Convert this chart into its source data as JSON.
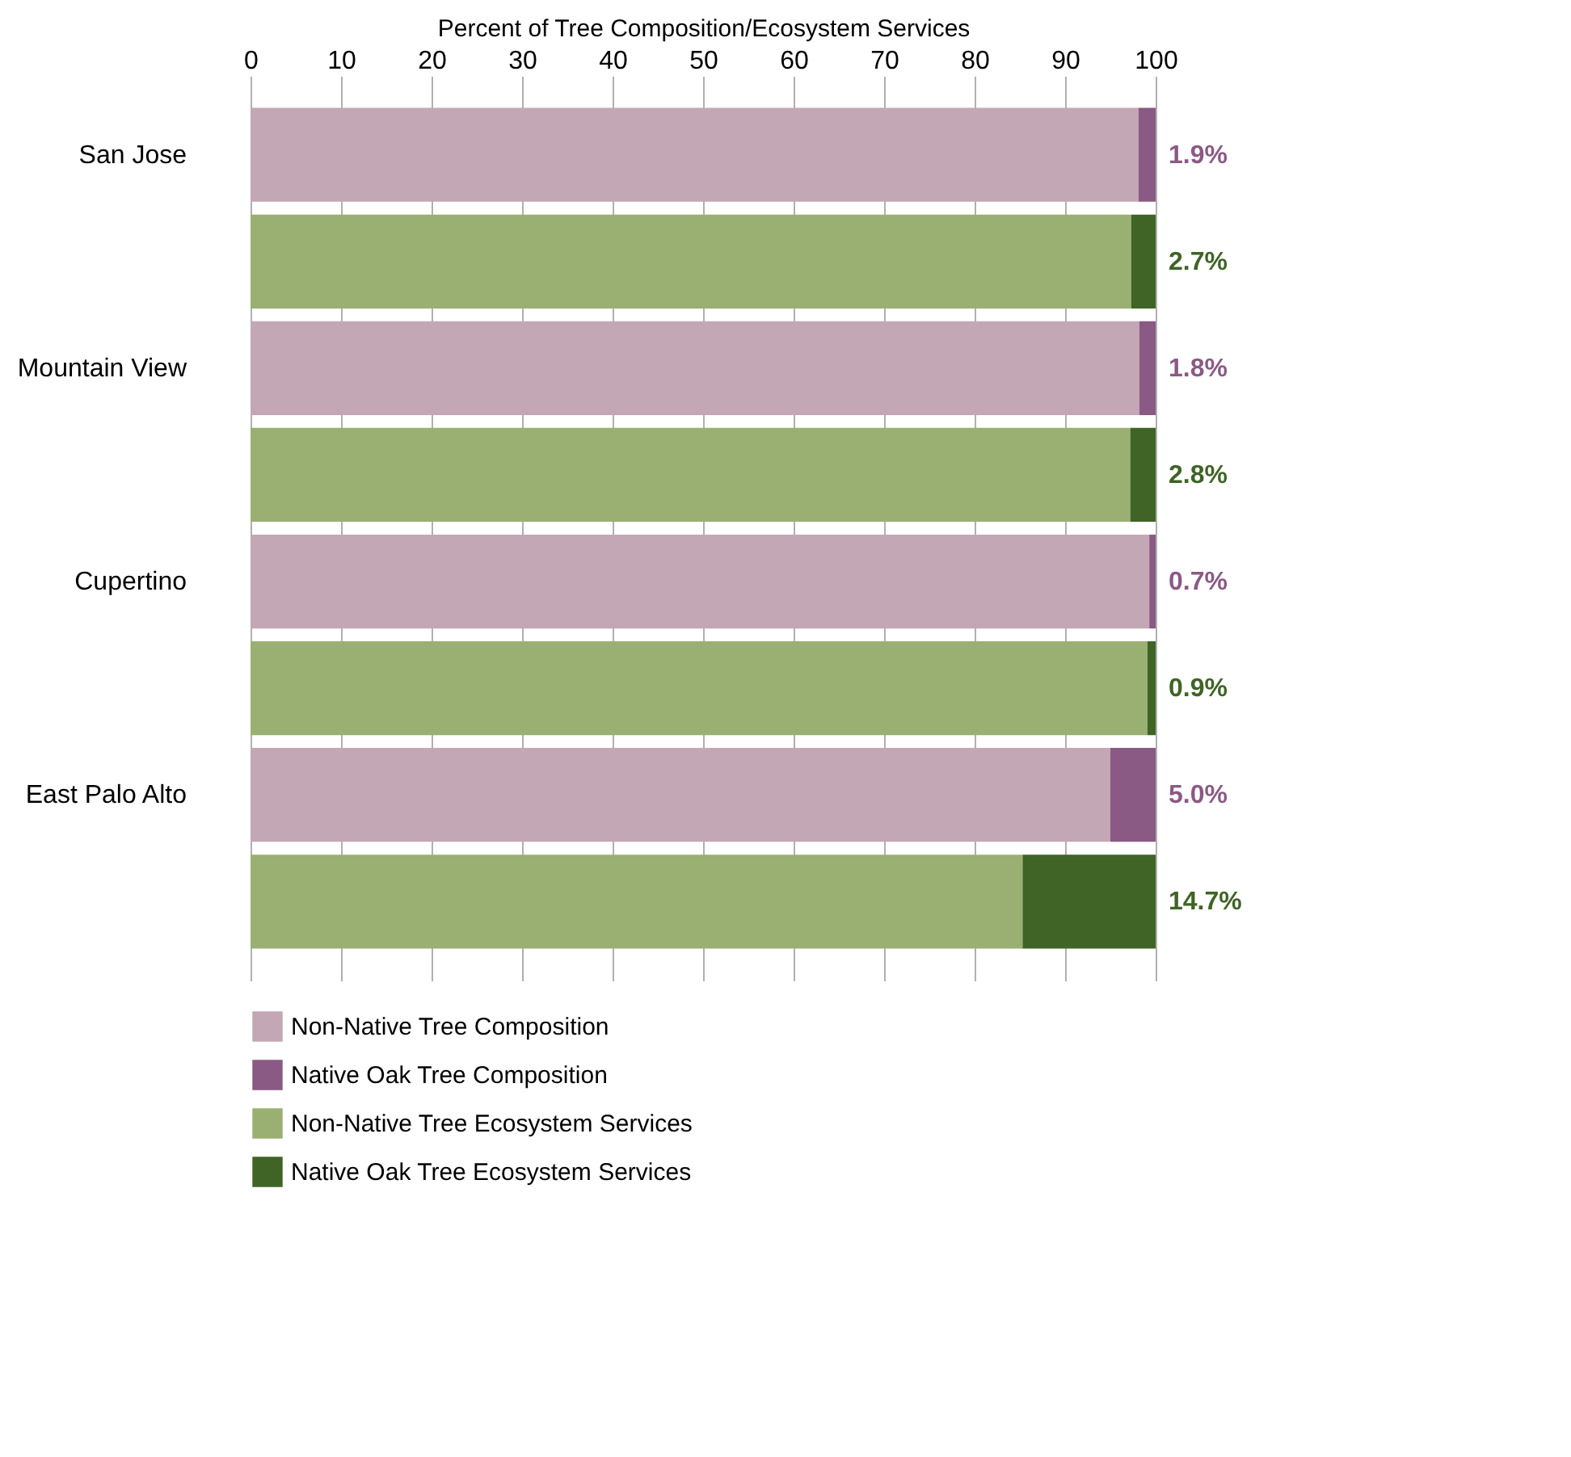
{
  "chart_data": {
    "type": "bar",
    "orientation": "horizontal",
    "stacked": true,
    "xlabel": "Percent of Tree Composition/Ecosystem Services",
    "categories": [
      "San Jose",
      null,
      "Mountain View",
      null,
      "Cupertino",
      null,
      "East Palo Alto",
      null
    ],
    "xlim": [
      0,
      100
    ],
    "xticks": [
      0,
      10,
      20,
      30,
      40,
      50,
      60,
      70,
      80,
      90,
      100
    ],
    "grid": "x",
    "legend": "bottom left",
    "series": [
      {
        "name": "Non-Native Tree Composition",
        "color": "#c4a7b4",
        "values": [
          98.1,
          null,
          98.2,
          null,
          99.3,
          null,
          95.0,
          null
        ]
      },
      {
        "name": "Native Oak Tree Composition",
        "color": "#8a5a84",
        "values": [
          1.9,
          null,
          1.8,
          null,
          0.7,
          null,
          5.0,
          null
        ],
        "value_labels": [
          "1.9%",
          null,
          "1.8%",
          null,
          "0.7%",
          null,
          "5.0%",
          null
        ]
      },
      {
        "name": "Non-Native Tree Ecosystem Services",
        "color": "#9ab072",
        "values": [
          null,
          97.3,
          null,
          97.2,
          null,
          99.1,
          null,
          85.3
        ]
      },
      {
        "name": "Native Oak Tree Ecosystem Services",
        "color": "#3f6426",
        "values": [
          null,
          2.7,
          null,
          2.8,
          null,
          0.9,
          null,
          14.7
        ],
        "value_labels": [
          null,
          "2.7%",
          null,
          "2.8%",
          null,
          "0.9%",
          null,
          "14.7%"
        ]
      }
    ]
  }
}
